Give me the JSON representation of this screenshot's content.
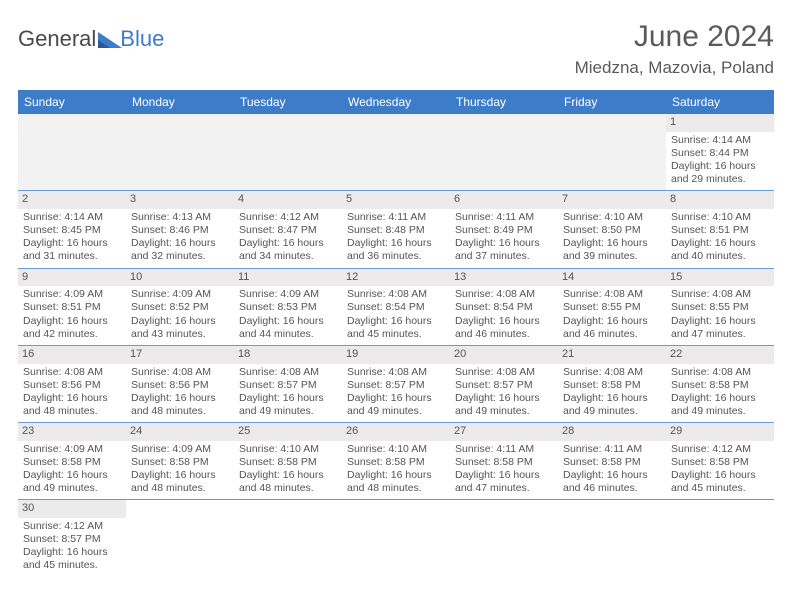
{
  "brand": {
    "part1": "General",
    "part2": "Blue"
  },
  "title": "June 2024",
  "location": "Miedzna, Mazovia, Poland",
  "colors": {
    "header_bg": "#3d7cc9",
    "header_text": "#ffffff",
    "daynum_bg": "#eceaea",
    "row_border": "#6b9bd1",
    "empty_bg": "#f2f2f2",
    "text": "#555555"
  },
  "day_headers": [
    "Sunday",
    "Monday",
    "Tuesday",
    "Wednesday",
    "Thursday",
    "Friday",
    "Saturday"
  ],
  "weeks": [
    [
      null,
      null,
      null,
      null,
      null,
      null,
      {
        "n": "1",
        "sr": "Sunrise: 4:14 AM",
        "ss": "Sunset: 8:44 PM",
        "d1": "Daylight: 16 hours",
        "d2": "and 29 minutes."
      }
    ],
    [
      {
        "n": "2",
        "sr": "Sunrise: 4:14 AM",
        "ss": "Sunset: 8:45 PM",
        "d1": "Daylight: 16 hours",
        "d2": "and 31 minutes."
      },
      {
        "n": "3",
        "sr": "Sunrise: 4:13 AM",
        "ss": "Sunset: 8:46 PM",
        "d1": "Daylight: 16 hours",
        "d2": "and 32 minutes."
      },
      {
        "n": "4",
        "sr": "Sunrise: 4:12 AM",
        "ss": "Sunset: 8:47 PM",
        "d1": "Daylight: 16 hours",
        "d2": "and 34 minutes."
      },
      {
        "n": "5",
        "sr": "Sunrise: 4:11 AM",
        "ss": "Sunset: 8:48 PM",
        "d1": "Daylight: 16 hours",
        "d2": "and 36 minutes."
      },
      {
        "n": "6",
        "sr": "Sunrise: 4:11 AM",
        "ss": "Sunset: 8:49 PM",
        "d1": "Daylight: 16 hours",
        "d2": "and 37 minutes."
      },
      {
        "n": "7",
        "sr": "Sunrise: 4:10 AM",
        "ss": "Sunset: 8:50 PM",
        "d1": "Daylight: 16 hours",
        "d2": "and 39 minutes."
      },
      {
        "n": "8",
        "sr": "Sunrise: 4:10 AM",
        "ss": "Sunset: 8:51 PM",
        "d1": "Daylight: 16 hours",
        "d2": "and 40 minutes."
      }
    ],
    [
      {
        "n": "9",
        "sr": "Sunrise: 4:09 AM",
        "ss": "Sunset: 8:51 PM",
        "d1": "Daylight: 16 hours",
        "d2": "and 42 minutes."
      },
      {
        "n": "10",
        "sr": "Sunrise: 4:09 AM",
        "ss": "Sunset: 8:52 PM",
        "d1": "Daylight: 16 hours",
        "d2": "and 43 minutes."
      },
      {
        "n": "11",
        "sr": "Sunrise: 4:09 AM",
        "ss": "Sunset: 8:53 PM",
        "d1": "Daylight: 16 hours",
        "d2": "and 44 minutes."
      },
      {
        "n": "12",
        "sr": "Sunrise: 4:08 AM",
        "ss": "Sunset: 8:54 PM",
        "d1": "Daylight: 16 hours",
        "d2": "and 45 minutes."
      },
      {
        "n": "13",
        "sr": "Sunrise: 4:08 AM",
        "ss": "Sunset: 8:54 PM",
        "d1": "Daylight: 16 hours",
        "d2": "and 46 minutes."
      },
      {
        "n": "14",
        "sr": "Sunrise: 4:08 AM",
        "ss": "Sunset: 8:55 PM",
        "d1": "Daylight: 16 hours",
        "d2": "and 46 minutes."
      },
      {
        "n": "15",
        "sr": "Sunrise: 4:08 AM",
        "ss": "Sunset: 8:55 PM",
        "d1": "Daylight: 16 hours",
        "d2": "and 47 minutes."
      }
    ],
    [
      {
        "n": "16",
        "sr": "Sunrise: 4:08 AM",
        "ss": "Sunset: 8:56 PM",
        "d1": "Daylight: 16 hours",
        "d2": "and 48 minutes."
      },
      {
        "n": "17",
        "sr": "Sunrise: 4:08 AM",
        "ss": "Sunset: 8:56 PM",
        "d1": "Daylight: 16 hours",
        "d2": "and 48 minutes."
      },
      {
        "n": "18",
        "sr": "Sunrise: 4:08 AM",
        "ss": "Sunset: 8:57 PM",
        "d1": "Daylight: 16 hours",
        "d2": "and 49 minutes."
      },
      {
        "n": "19",
        "sr": "Sunrise: 4:08 AM",
        "ss": "Sunset: 8:57 PM",
        "d1": "Daylight: 16 hours",
        "d2": "and 49 minutes."
      },
      {
        "n": "20",
        "sr": "Sunrise: 4:08 AM",
        "ss": "Sunset: 8:57 PM",
        "d1": "Daylight: 16 hours",
        "d2": "and 49 minutes."
      },
      {
        "n": "21",
        "sr": "Sunrise: 4:08 AM",
        "ss": "Sunset: 8:58 PM",
        "d1": "Daylight: 16 hours",
        "d2": "and 49 minutes."
      },
      {
        "n": "22",
        "sr": "Sunrise: 4:08 AM",
        "ss": "Sunset: 8:58 PM",
        "d1": "Daylight: 16 hours",
        "d2": "and 49 minutes."
      }
    ],
    [
      {
        "n": "23",
        "sr": "Sunrise: 4:09 AM",
        "ss": "Sunset: 8:58 PM",
        "d1": "Daylight: 16 hours",
        "d2": "and 49 minutes."
      },
      {
        "n": "24",
        "sr": "Sunrise: 4:09 AM",
        "ss": "Sunset: 8:58 PM",
        "d1": "Daylight: 16 hours",
        "d2": "and 48 minutes."
      },
      {
        "n": "25",
        "sr": "Sunrise: 4:10 AM",
        "ss": "Sunset: 8:58 PM",
        "d1": "Daylight: 16 hours",
        "d2": "and 48 minutes."
      },
      {
        "n": "26",
        "sr": "Sunrise: 4:10 AM",
        "ss": "Sunset: 8:58 PM",
        "d1": "Daylight: 16 hours",
        "d2": "and 48 minutes."
      },
      {
        "n": "27",
        "sr": "Sunrise: 4:11 AM",
        "ss": "Sunset: 8:58 PM",
        "d1": "Daylight: 16 hours",
        "d2": "and 47 minutes."
      },
      {
        "n": "28",
        "sr": "Sunrise: 4:11 AM",
        "ss": "Sunset: 8:58 PM",
        "d1": "Daylight: 16 hours",
        "d2": "and 46 minutes."
      },
      {
        "n": "29",
        "sr": "Sunrise: 4:12 AM",
        "ss": "Sunset: 8:58 PM",
        "d1": "Daylight: 16 hours",
        "d2": "and 45 minutes."
      }
    ],
    [
      {
        "n": "30",
        "sr": "Sunrise: 4:12 AM",
        "ss": "Sunset: 8:57 PM",
        "d1": "Daylight: 16 hours",
        "d2": "and 45 minutes."
      },
      null,
      null,
      null,
      null,
      null,
      null
    ]
  ]
}
